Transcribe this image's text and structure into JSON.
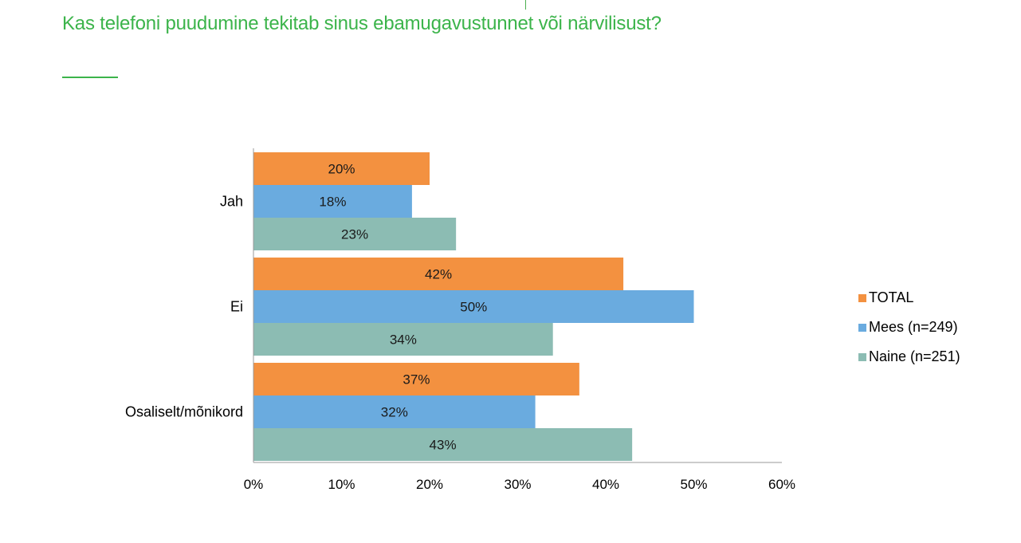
{
  "header": {
    "title": "Kas telefoni puudumine tekitab sinus ebamugavustunnet või närvilisust?",
    "title_color": "#3cb44b"
  },
  "chart_data": {
    "type": "bar",
    "orientation": "horizontal",
    "title": "Kas telefoni puudumine tekitab sinus ebamugavustunnet või närvilisust?",
    "categories": [
      "Jah",
      "Ei",
      "Osaliselt/mõnikord"
    ],
    "series": [
      {
        "name": "TOTAL",
        "color": "#f39140",
        "values": [
          20,
          42,
          37
        ]
      },
      {
        "name": "Mees (n=249)",
        "color": "#6aabdf",
        "values": [
          18,
          50,
          32
        ]
      },
      {
        "name": "Naine (n=251)",
        "color": "#8cbcb3",
        "values": [
          23,
          34,
          43
        ]
      }
    ],
    "value_unit": "%",
    "xlim": [
      0,
      60
    ],
    "xticks": [
      0,
      10,
      20,
      30,
      40,
      50,
      60
    ],
    "xtick_labels": [
      "0%",
      "10%",
      "20%",
      "30%",
      "40%",
      "50%",
      "60%"
    ],
    "grid": false,
    "legend_position": "right"
  }
}
